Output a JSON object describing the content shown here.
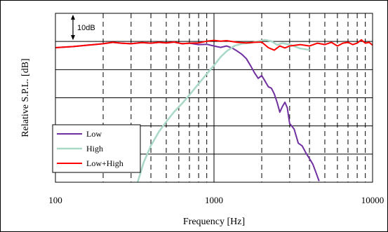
{
  "chart_data": {
    "type": "line",
    "title": "",
    "xlabel": "Frequency [Hz]",
    "ylabel": "Relative S.P.L. [dB]",
    "x_scale": "log",
    "xlim": [
      100,
      10000
    ],
    "xticks": [
      100,
      1000,
      10000
    ],
    "xtick_labels": [
      "100",
      "1000",
      "10000"
    ],
    "ylim": [
      -50,
      10
    ],
    "y_grid_step": 10,
    "y_ticks_labeled": false,
    "grid": true,
    "legend_position": "bottom-left",
    "annotation": {
      "text": "10dB",
      "from": 10,
      "to": 0
    },
    "colors": {
      "Low": "#7030a0",
      "High": "#a9d9c6",
      "Low+High": "#ff0000"
    },
    "series": [
      {
        "name": "Low",
        "points": [
          [
            100,
            -2.2
          ],
          [
            130,
            -1.8
          ],
          [
            160,
            -1.3
          ],
          [
            200,
            -0.8
          ],
          [
            230,
            -0.3
          ],
          [
            260,
            -0.6
          ],
          [
            300,
            -0.8
          ],
          [
            350,
            -0.4
          ],
          [
            400,
            -0.6
          ],
          [
            450,
            -0.3
          ],
          [
            500,
            -0.5
          ],
          [
            560,
            -0.2
          ],
          [
            630,
            -0.8
          ],
          [
            700,
            -0.6
          ],
          [
            800,
            -1.1
          ],
          [
            900,
            -1.0
          ],
          [
            1000,
            -1.6
          ],
          [
            1100,
            -2.1
          ],
          [
            1200,
            -1.6
          ],
          [
            1300,
            -2.3
          ],
          [
            1400,
            -3.4
          ],
          [
            1500,
            -4.6
          ],
          [
            1600,
            -6.1
          ],
          [
            1700,
            -8.6
          ],
          [
            1800,
            -11.1
          ],
          [
            1900,
            -13.1
          ],
          [
            2000,
            -12.1
          ],
          [
            2100,
            -14.1
          ],
          [
            2200,
            -16.1
          ],
          [
            2300,
            -16.6
          ],
          [
            2400,
            -18.6
          ],
          [
            2500,
            -21.6
          ],
          [
            2600,
            -25.1
          ],
          [
            2700,
            -23.1
          ],
          [
            2800,
            -21.6
          ],
          [
            2900,
            -23.6
          ],
          [
            3000,
            -29.1
          ],
          [
            3200,
            -31.1
          ],
          [
            3400,
            -36.1
          ],
          [
            3600,
            -37.1
          ],
          [
            3800,
            -39.6
          ],
          [
            4000,
            -41.6
          ],
          [
            4200,
            -43.6
          ],
          [
            4400,
            -46.6
          ],
          [
            4600,
            -49.6
          ]
        ]
      },
      {
        "name": "High",
        "points": [
          [
            330,
            -50
          ],
          [
            360,
            -43
          ],
          [
            400,
            -37
          ],
          [
            450,
            -32
          ],
          [
            500,
            -28.5
          ],
          [
            560,
            -25
          ],
          [
            630,
            -22
          ],
          [
            700,
            -19
          ],
          [
            800,
            -15
          ],
          [
            900,
            -11.5
          ],
          [
            1000,
            -8.5
          ],
          [
            1100,
            -5.5
          ],
          [
            1200,
            -3.5
          ],
          [
            1350,
            -1.5
          ],
          [
            1500,
            -0.8
          ],
          [
            1700,
            -0.5
          ],
          [
            1900,
            0.1
          ],
          [
            2100,
            0.6
          ],
          [
            2300,
            0.1
          ],
          [
            2500,
            -1.2
          ],
          [
            2700,
            -0.6
          ],
          [
            3000,
            -1.1
          ],
          [
            3500,
            -2.5
          ],
          [
            4000,
            -3.0
          ]
        ]
      },
      {
        "name": "Low+High",
        "points": [
          [
            100,
            -2.2
          ],
          [
            130,
            -1.8
          ],
          [
            160,
            -1.3
          ],
          [
            200,
            -0.8
          ],
          [
            230,
            -0.3
          ],
          [
            260,
            -0.6
          ],
          [
            300,
            -0.8
          ],
          [
            350,
            -0.4
          ],
          [
            400,
            -0.6
          ],
          [
            450,
            -0.3
          ],
          [
            500,
            -0.5
          ],
          [
            560,
            -0.2
          ],
          [
            630,
            -0.8
          ],
          [
            700,
            -0.6
          ],
          [
            800,
            -0.5
          ],
          [
            900,
            0.1
          ],
          [
            1000,
            0.4
          ],
          [
            1100,
            0.1
          ],
          [
            1200,
            0.3
          ],
          [
            1400,
            -0.3
          ],
          [
            1600,
            -0.5
          ],
          [
            1800,
            -0.3
          ],
          [
            2000,
            -0.2
          ],
          [
            2200,
            -2.2
          ],
          [
            2400,
            -3.1
          ],
          [
            2600,
            -1.6
          ],
          [
            2800,
            -2.3
          ],
          [
            3000,
            -1.6
          ],
          [
            3500,
            -1.1
          ],
          [
            4000,
            -1.6
          ],
          [
            4500,
            -0.6
          ],
          [
            5000,
            -1.1
          ],
          [
            5500,
            -0.3
          ],
          [
            6000,
            -1.6
          ],
          [
            6500,
            -0.6
          ],
          [
            7000,
            -0.3
          ],
          [
            7500,
            -1.1
          ],
          [
            8000,
            -0.6
          ],
          [
            8500,
            0.6
          ],
          [
            9000,
            -0.6
          ],
          [
            9500,
            -0.3
          ],
          [
            10000,
            -1.3
          ]
        ]
      }
    ]
  }
}
